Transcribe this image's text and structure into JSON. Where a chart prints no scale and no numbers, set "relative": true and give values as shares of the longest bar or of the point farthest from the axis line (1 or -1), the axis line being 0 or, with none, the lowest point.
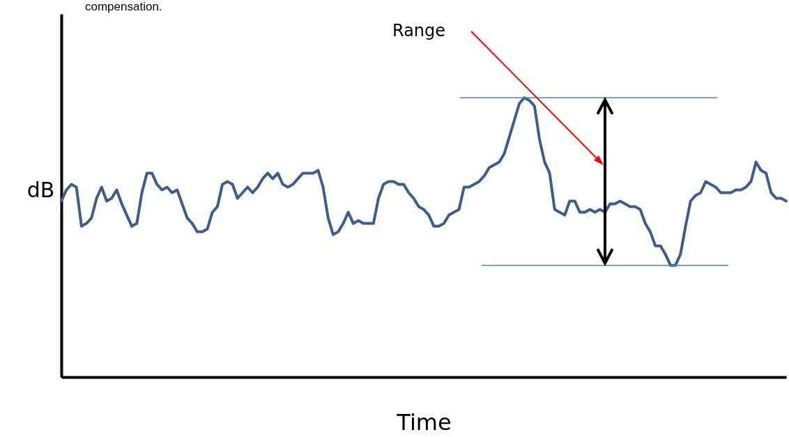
{
  "chart_data": {
    "type": "line",
    "xlabel": "Time",
    "ylabel": "dB",
    "relative": true,
    "grid": false,
    "annotations": [
      "compensation.",
      "Range"
    ],
    "categories": [
      null,
      null,
      null,
      null,
      null,
      null,
      null,
      null,
      null,
      null,
      null,
      null,
      null,
      null,
      null,
      null,
      null,
      null,
      null,
      null,
      null,
      null,
      null,
      null,
      null,
      null,
      null,
      null,
      null,
      null,
      null,
      null,
      null,
      null,
      null,
      null,
      null,
      null,
      null,
      null,
      null,
      null,
      null,
      null,
      null,
      null,
      null,
      null,
      null,
      null,
      null,
      null,
      null,
      null,
      null,
      null,
      null,
      null,
      null,
      null,
      null,
      null,
      null,
      null,
      null,
      null,
      null,
      null,
      null,
      null,
      null,
      null,
      null,
      null,
      null,
      null,
      null,
      null,
      null,
      null,
      null,
      null,
      null,
      null,
      null,
      null,
      null,
      null,
      null,
      null,
      null,
      null,
      null,
      null,
      null,
      null,
      null,
      null,
      null,
      null,
      null,
      null,
      null,
      null,
      null,
      null,
      null,
      null,
      null,
      null,
      null,
      null,
      null,
      null,
      null,
      null,
      null,
      null,
      null,
      null,
      null,
      null,
      null,
      null,
      null,
      null,
      null,
      null,
      null,
      null,
      null,
      null,
      null,
      null,
      null,
      null,
      null,
      null,
      null,
      null,
      null,
      null,
      null,
      null,
      null
    ],
    "series": [
      {
        "color": "#3d5e8c",
        "values": [
          0.63,
          0.67,
          0.69,
          0.68,
          0.54,
          0.55,
          0.57,
          0.64,
          0.68,
          0.63,
          0.64,
          0.67,
          0.62,
          0.58,
          0.54,
          0.55,
          0.66,
          0.73,
          0.73,
          0.69,
          0.67,
          0.68,
          0.66,
          0.67,
          0.62,
          0.57,
          0.55,
          0.52,
          0.52,
          0.53,
          0.59,
          0.61,
          0.69,
          0.7,
          0.69,
          0.64,
          0.66,
          0.68,
          0.66,
          0.68,
          0.71,
          0.73,
          0.71,
          0.73,
          0.69,
          0.68,
          0.69,
          0.71,
          0.73,
          0.73,
          0.73,
          0.74,
          0.68,
          0.57,
          0.51,
          0.52,
          0.55,
          0.59,
          0.55,
          0.56,
          0.55,
          0.55,
          0.55,
          0.64,
          0.69,
          0.7,
          0.7,
          0.69,
          0.69,
          0.66,
          0.64,
          0.61,
          0.6,
          0.58,
          0.54,
          0.54,
          0.55,
          0.58,
          0.59,
          0.6,
          0.68,
          0.68,
          0.69,
          0.7,
          0.72,
          0.75,
          0.76,
          0.77,
          0.8,
          0.86,
          0.92,
          0.98,
          1,
          0.99,
          0.97,
          0.85,
          0.77,
          0.73,
          0.6,
          0.59,
          0.58,
          0.63,
          0.63,
          0.59,
          0.59,
          0.6,
          0.59,
          0.6,
          0.59,
          0.62,
          0.62,
          0.63,
          0.62,
          0.61,
          0.61,
          0.6,
          0.55,
          0.52,
          0.47,
          0.47,
          0.44,
          0.4,
          0.4,
          0.44,
          0.54,
          0.63,
          0.65,
          0.66,
          0.7,
          0.69,
          0.68,
          0.66,
          0.66,
          0.66,
          0.67,
          0.67,
          0.68,
          0.7,
          0.77,
          0.74,
          0.73,
          0.66,
          0.64,
          0.64,
          0.63
        ]
      }
    ],
    "ref_lines": [
      {
        "axis": "y",
        "value": 1,
        "color": "#4f81bd"
      },
      {
        "axis": "y",
        "value": 0.4,
        "color": "#4f81bd"
      }
    ]
  }
}
